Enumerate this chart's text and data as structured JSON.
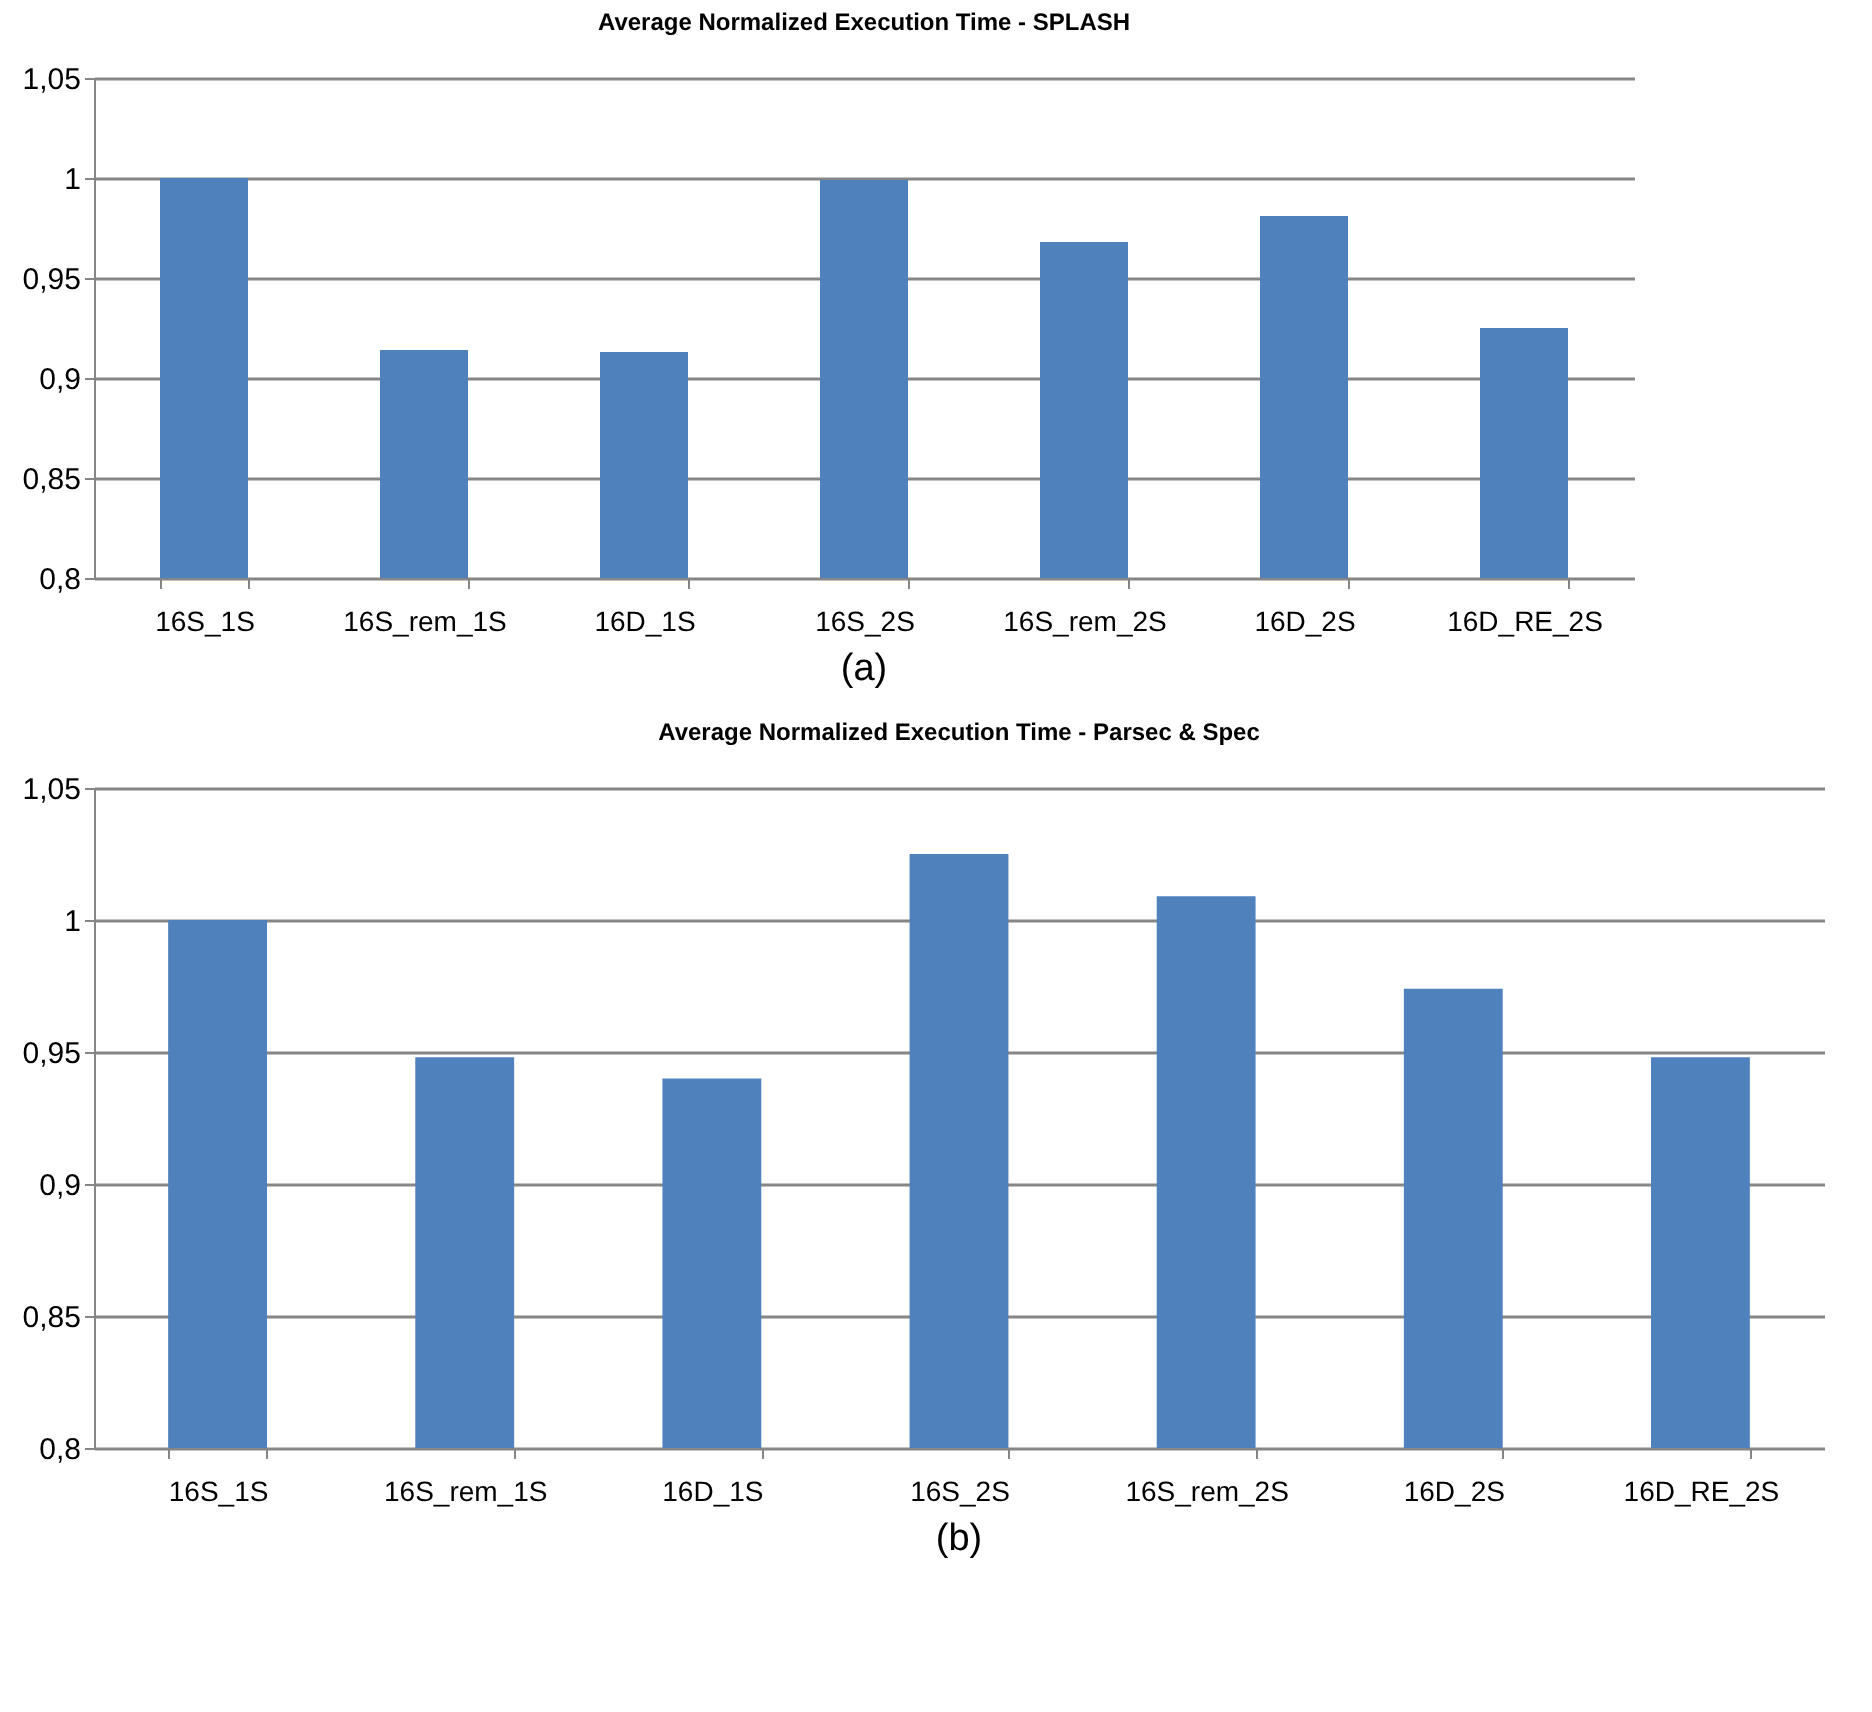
{
  "chart_data": [
    {
      "type": "bar",
      "title": "Average Normalized Execution Time - SPLASH",
      "categories": [
        "16S_1S",
        "16S_rem_1S",
        "16D_1S",
        "16S_2S",
        "16S_rem_2S",
        "16D_2S",
        "16D_RE_2S"
      ],
      "values": [
        1.0,
        0.914,
        0.913,
        0.999,
        0.968,
        0.981,
        0.925
      ],
      "color": "#4f81bd",
      "ylim": [
        0.8,
        1.05
      ],
      "yticks": [
        {
          "value": 0.8,
          "label": "0,8"
        },
        {
          "value": 0.85,
          "label": "0,85"
        },
        {
          "value": 0.9,
          "label": "0,9"
        },
        {
          "value": 0.95,
          "label": "0,95"
        },
        1,
        {
          "value": 1.05,
          "label": "1,05"
        }
      ],
      "grid": "y",
      "annotations": [
        "(a)"
      ]
    },
    {
      "type": "bar",
      "title": "Average Normalized Execution Time - Parsec & Spec",
      "categories": [
        "16S_1S",
        "16S_rem_1S",
        "16D_1S",
        "16S_2S",
        "16S_rem_2S",
        "16D_2S",
        "16D_RE_2S"
      ],
      "values": [
        1.0,
        0.948,
        0.94,
        1.025,
        1.009,
        0.974,
        0.948
      ],
      "color": "#4f81bd",
      "ylim": [
        0.8,
        1.05
      ],
      "yticks": [
        {
          "value": 0.8,
          "label": "0,8"
        },
        {
          "value": 0.85,
          "label": "0,85"
        },
        {
          "value": 0.9,
          "label": "0,9"
        },
        {
          "value": 0.95,
          "label": "0,95"
        },
        1,
        {
          "value": 1.05,
          "label": "1,05"
        }
      ],
      "grid": "y",
      "annotations": [
        "(b)"
      ]
    }
  ]
}
